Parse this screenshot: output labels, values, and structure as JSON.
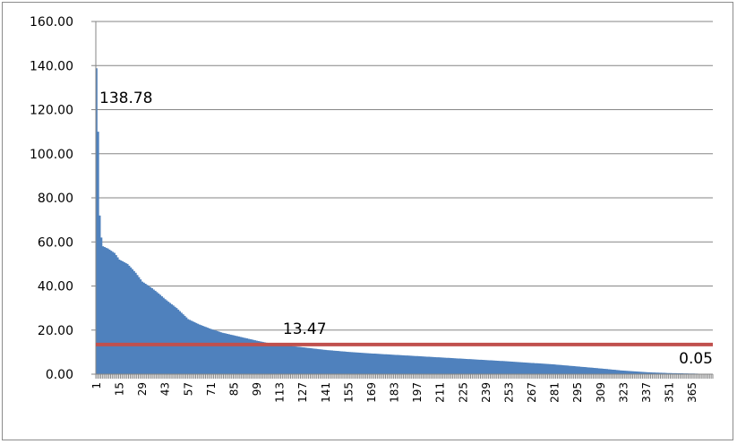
{
  "chart_data": {
    "type": "area",
    "title": "",
    "xlabel": "",
    "ylabel": "",
    "ylim": [
      0,
      160
    ],
    "grid": true,
    "legend": "none",
    "n_points": 377,
    "y_ticks": [
      "0.00",
      "20.00",
      "40.00",
      "60.00",
      "80.00",
      "100.00",
      "120.00",
      "140.00",
      "160.00"
    ],
    "x_ticks": [
      "1",
      "15",
      "29",
      "43",
      "57",
      "71",
      "85",
      "99",
      "113",
      "127",
      "141",
      "155",
      "169",
      "183",
      "197",
      "211",
      "225",
      "239",
      "253",
      "267",
      "281",
      "295",
      "309",
      "323",
      "337",
      "351",
      "365"
    ],
    "series": [
      {
        "color": "#4f81bd",
        "curve": [
          [
            1,
            138.78
          ],
          [
            2,
            110
          ],
          [
            3,
            72
          ],
          [
            4,
            62
          ],
          [
            5,
            58
          ],
          [
            8,
            57
          ],
          [
            12,
            55
          ],
          [
            15,
            52
          ],
          [
            20,
            50
          ],
          [
            25,
            46
          ],
          [
            29,
            42
          ],
          [
            35,
            39
          ],
          [
            40,
            36
          ],
          [
            43,
            34
          ],
          [
            50,
            30
          ],
          [
            57,
            25
          ],
          [
            64,
            22.5
          ],
          [
            71,
            20.5
          ],
          [
            78,
            18.8
          ],
          [
            85,
            17.6
          ],
          [
            92,
            16.4
          ],
          [
            99,
            15.2
          ],
          [
            106,
            14.1
          ],
          [
            113,
            13.4
          ],
          [
            120,
            12.8
          ],
          [
            127,
            12.2
          ],
          [
            141,
            11
          ],
          [
            155,
            10.1
          ],
          [
            169,
            9.4
          ],
          [
            183,
            8.8
          ],
          [
            197,
            8.2
          ],
          [
            211,
            7.6
          ],
          [
            225,
            7
          ],
          [
            239,
            6.4
          ],
          [
            253,
            5.8
          ],
          [
            267,
            5.1
          ],
          [
            281,
            4.4
          ],
          [
            295,
            3.5
          ],
          [
            309,
            2.6
          ],
          [
            323,
            1.6
          ],
          [
            337,
            0.9
          ],
          [
            351,
            0.5
          ],
          [
            365,
            0.3
          ],
          [
            377,
            0.05
          ]
        ]
      }
    ],
    "average_line": {
      "value": 13.47,
      "color": "#c0504d"
    },
    "data_labels": [
      {
        "text": "138.78",
        "x": 1,
        "y": 138.78
      },
      {
        "text": "13.47",
        "x": 127,
        "y": 13.47
      },
      {
        "text": "0.05",
        "x": 377,
        "y": 0.05
      }
    ],
    "colors": {
      "gridline": "#868686",
      "axis": "#868686"
    }
  }
}
